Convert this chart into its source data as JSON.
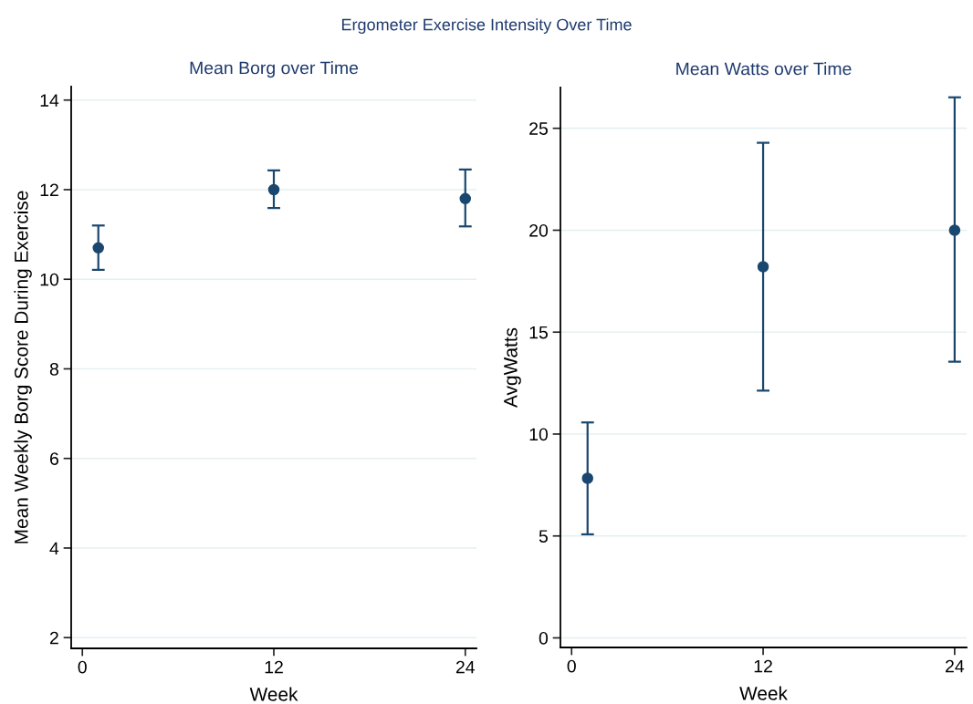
{
  "chart_data": [
    {
      "type": "scatter",
      "title": "Mean Borg over Time",
      "annotations": [
        "Ergometer Exercise Intensity Over Time"
      ],
      "xlabel": "Week",
      "ylabel": "Mean Weekly Borg Score During Exercise",
      "x": [
        1,
        12,
        24
      ],
      "series": [
        {
          "color": "#1a476f",
          "values": [
            10.7,
            12.0,
            11.8
          ],
          "errors": [
            [
              10.21,
              11.2
            ],
            [
              11.59,
              12.43
            ],
            [
              11.18,
              12.45
            ]
          ]
        }
      ],
      "xlim": [
        -0.7,
        24.7
      ],
      "xticks": [
        0,
        12,
        24
      ],
      "ylim": [
        1.76,
        14.3
      ],
      "yticks": [
        2,
        4,
        6,
        8,
        10,
        12,
        14
      ],
      "grid": "y",
      "marker": "circle"
    },
    {
      "type": "scatter",
      "title": "Mean Watts over Time",
      "xlabel": "Week",
      "ylabel": "AvgWatts",
      "x": [
        1,
        12,
        24
      ],
      "series": [
        {
          "color": "#1a476f",
          "values": [
            7.83,
            18.21,
            20.0
          ],
          "errors": [
            [
              5.08,
              10.57
            ],
            [
              12.13,
              24.29
            ],
            [
              13.55,
              26.52
            ]
          ]
        }
      ],
      "xlim": [
        -0.7,
        24.75
      ],
      "xticks": [
        0,
        12,
        24
      ],
      "ylim": [
        -0.47,
        27
      ],
      "yticks": [
        0,
        5,
        10,
        15,
        20,
        25
      ],
      "grid": "y",
      "marker": "circle"
    }
  ]
}
